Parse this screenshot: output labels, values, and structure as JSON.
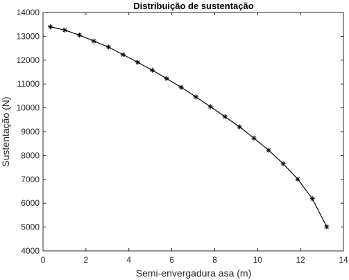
{
  "chart_data": {
    "type": "line",
    "title": "Distribuição de sustentação",
    "xlabel": "Semi-envergadura asa (m)",
    "ylabel": "Sustentação (N)",
    "xlim": [
      0,
      14
    ],
    "ylim": [
      4000,
      14000
    ],
    "xticks": [
      0,
      2,
      4,
      6,
      8,
      10,
      12,
      14
    ],
    "yticks": [
      4000,
      5000,
      6000,
      7000,
      8000,
      9000,
      10000,
      11000,
      12000,
      13000,
      14000
    ],
    "grid": false,
    "marker": "asterisk",
    "line_color": "#000000",
    "series": [
      {
        "x": [
          0.34,
          1.02,
          1.7,
          2.37,
          3.05,
          3.73,
          4.41,
          5.09,
          5.76,
          6.44,
          7.12,
          7.8,
          8.48,
          9.16,
          9.83,
          10.51,
          11.19,
          11.87,
          12.55,
          13.22
        ],
        "y": [
          13400,
          13260,
          13050,
          12800,
          12550,
          12230,
          11910,
          11580,
          11230,
          10860,
          10460,
          10050,
          9630,
          9200,
          8730,
          8220,
          7660,
          7010,
          6190,
          5010
        ]
      }
    ]
  }
}
